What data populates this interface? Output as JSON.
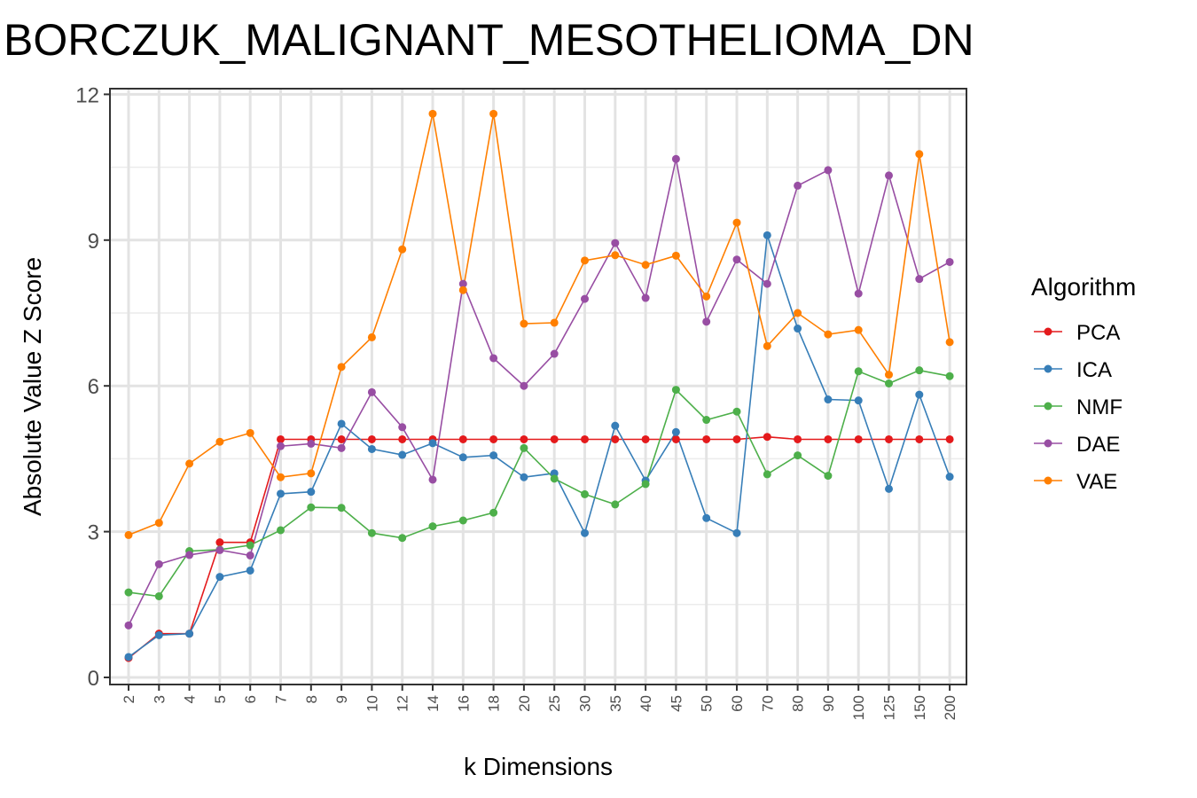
{
  "chart_data": {
    "type": "line",
    "title": "BORCZUK_MALIGNANT_MESOTHELIOMA_DN",
    "xlabel": "k Dimensions",
    "ylabel": "Absolute Value Z Score",
    "ylim": [
      0,
      12
    ],
    "yticks": [
      0,
      3,
      6,
      9,
      12
    ],
    "grid": true,
    "legend_title": "Algorithm",
    "legend_position": "right",
    "categories": [
      "2",
      "3",
      "4",
      "5",
      "6",
      "7",
      "8",
      "9",
      "10",
      "12",
      "14",
      "16",
      "18",
      "20",
      "25",
      "30",
      "35",
      "40",
      "45",
      "50",
      "60",
      "70",
      "80",
      "90",
      "100",
      "125",
      "150",
      "200"
    ],
    "series": [
      {
        "name": "PCA",
        "color": "#E41A1C",
        "values": [
          0.4,
          0.9,
          0.9,
          2.78,
          2.78,
          4.9,
          4.9,
          4.9,
          4.9,
          4.9,
          4.9,
          4.9,
          4.9,
          4.9,
          4.9,
          4.9,
          4.9,
          4.9,
          4.9,
          4.9,
          4.9,
          4.95,
          4.9,
          4.9,
          4.9,
          4.9,
          4.9,
          4.9
        ]
      },
      {
        "name": "ICA",
        "color": "#377EB8",
        "values": [
          0.42,
          0.87,
          0.9,
          2.07,
          2.2,
          3.78,
          3.82,
          5.22,
          4.7,
          4.58,
          4.82,
          4.53,
          4.57,
          4.12,
          4.2,
          2.97,
          5.18,
          4.05,
          5.05,
          3.28,
          2.97,
          9.1,
          7.18,
          5.72,
          5.7,
          3.88,
          5.82,
          4.13
        ]
      },
      {
        "name": "NMF",
        "color": "#4DAF4A",
        "values": [
          1.75,
          1.67,
          2.6,
          2.63,
          2.72,
          3.03,
          3.5,
          3.49,
          2.97,
          2.87,
          3.11,
          3.23,
          3.39,
          4.72,
          4.09,
          3.77,
          3.56,
          3.98,
          5.92,
          5.3,
          5.47,
          4.18,
          4.57,
          4.15,
          6.3,
          6.05,
          6.32,
          6.2
        ]
      },
      {
        "name": "DAE",
        "color": "#984EA3",
        "values": [
          1.07,
          2.33,
          2.52,
          2.62,
          2.51,
          4.76,
          4.81,
          4.72,
          5.87,
          5.15,
          4.07,
          8.1,
          6.57,
          6.0,
          6.66,
          7.79,
          8.94,
          7.81,
          10.67,
          7.32,
          8.6,
          8.1,
          10.12,
          10.44,
          7.9,
          10.33,
          8.2,
          8.55
        ]
      },
      {
        "name": "VAE",
        "color": "#FF7F00",
        "values": [
          2.93,
          3.18,
          4.4,
          4.85,
          5.03,
          4.12,
          4.2,
          6.39,
          7.0,
          8.81,
          11.6,
          7.97,
          11.6,
          7.28,
          7.3,
          8.58,
          8.69,
          8.49,
          8.68,
          7.84,
          9.36,
          6.82,
          7.5,
          7.06,
          7.15,
          6.23,
          10.77,
          6.9
        ]
      }
    ]
  }
}
